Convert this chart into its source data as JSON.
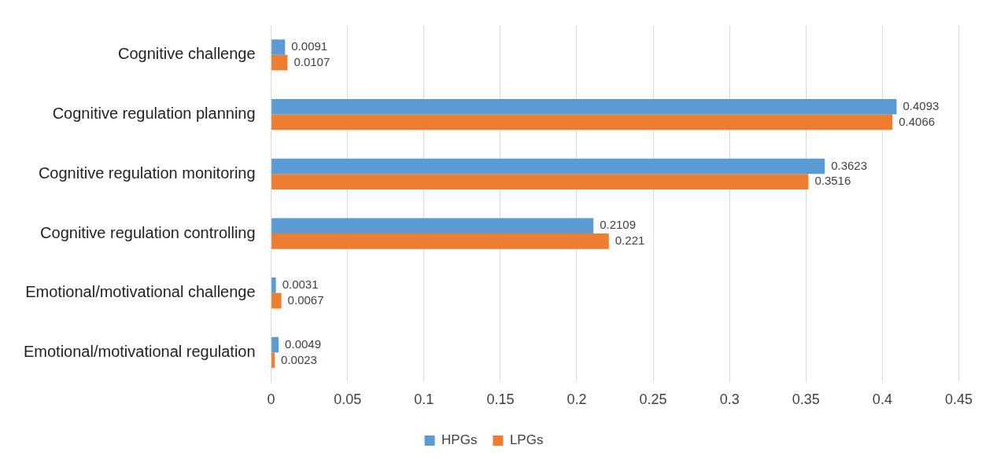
{
  "chart_data": {
    "type": "bar",
    "orientation": "horizontal",
    "categories": [
      "Cognitive challenge",
      "Cognitive regulation planning",
      "Cognitive regulation monitoring",
      "Cognitive regulation controlling",
      "Emotional/motivational challenge",
      "Emotional/motivational regulation"
    ],
    "series": [
      {
        "name": "HPGs",
        "color": "#5b9bd5",
        "values": [
          0.0091,
          0.4093,
          0.3623,
          0.2109,
          0.0031,
          0.0049
        ]
      },
      {
        "name": "LPGs",
        "color": "#ed7d31",
        "values": [
          0.0107,
          0.4066,
          0.3516,
          0.221,
          0.0067,
          0.0023
        ]
      }
    ],
    "xlim": [
      0,
      0.45
    ],
    "xticks": [
      0,
      0.05,
      0.1,
      0.15,
      0.2,
      0.25,
      0.3,
      0.35,
      0.4,
      0.45
    ],
    "grid": "x",
    "legend": "bottom",
    "data_labels": true
  }
}
